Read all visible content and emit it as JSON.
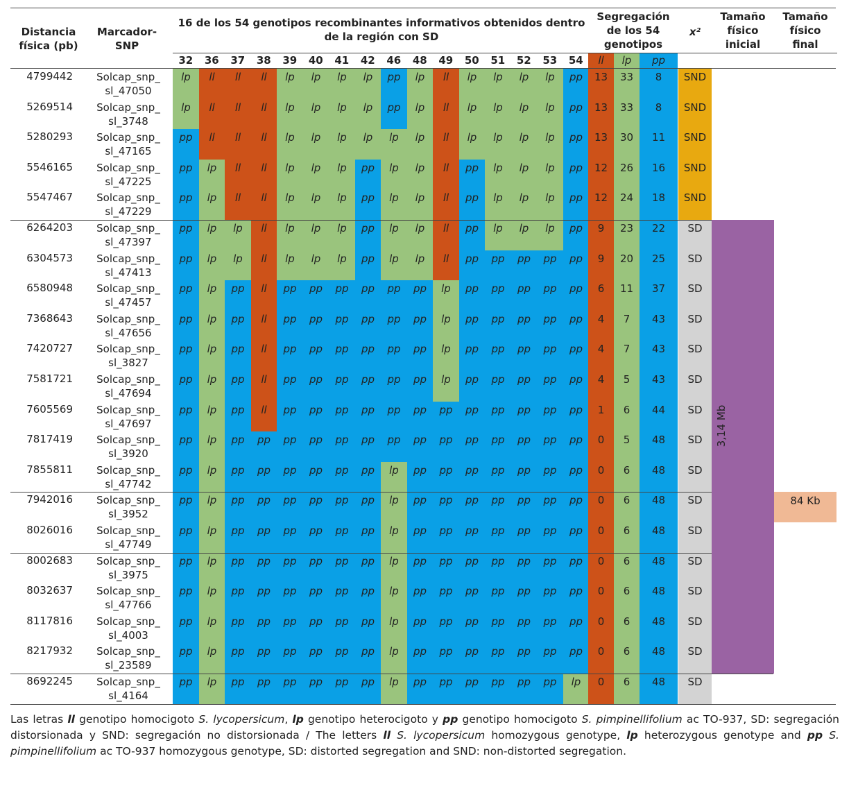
{
  "colors": {
    "ll": "#cd5219",
    "lp": "#9ac47d",
    "pp": "#0aa0e6",
    "snd": "#e8a910",
    "sd": "#d3d3d3",
    "purple": "#9a63a3",
    "salmon": "#f0b995"
  },
  "headers": {
    "distance": "Distancia física (pb)",
    "marker": "Marcador-SNP",
    "genotypes_title": "16 de los 54 genotipos recombinantes informativos obtenidos dentro de la región con SD",
    "segregation": "Segregación de los 54 genotipos",
    "chi": "x²",
    "size_initial": "Tamaño físico inicial",
    "size_final": "Tamaño físico final"
  },
  "genotype_ids": [
    "32",
    "36",
    "37",
    "38",
    "39",
    "40",
    "41",
    "42",
    "46",
    "48",
    "49",
    "50",
    "51",
    "52",
    "53",
    "54"
  ],
  "seg_labels": [
    "ll",
    "lp",
    "pp"
  ],
  "rows": [
    {
      "dist": "4799442",
      "marker": [
        "Solcap_snp_",
        "sl_47050"
      ],
      "g": [
        "lp",
        "ll",
        "ll",
        "ll",
        "lp",
        "lp",
        "lp",
        "lp",
        "pp",
        "lp",
        "ll",
        "lp",
        "lp",
        "lp",
        "lp",
        "pp"
      ],
      "seg": [
        "13",
        "33",
        "8"
      ],
      "chi": "SND"
    },
    {
      "dist": "5269514",
      "marker": [
        "Solcap_snp_",
        "sl_3748"
      ],
      "g": [
        "lp",
        "ll",
        "ll",
        "ll",
        "lp",
        "lp",
        "lp",
        "lp",
        "pp",
        "lp",
        "ll",
        "lp",
        "lp",
        "lp",
        "lp",
        "pp"
      ],
      "seg": [
        "13",
        "33",
        "8"
      ],
      "chi": "SND"
    },
    {
      "dist": "5280293",
      "marker": [
        "Solcap_snp_",
        "sl_47165"
      ],
      "g": [
        "pp",
        "ll",
        "ll",
        "ll",
        "lp",
        "lp",
        "lp",
        "lp",
        "lp",
        "lp",
        "ll",
        "lp",
        "lp",
        "lp",
        "lp",
        "pp"
      ],
      "seg": [
        "13",
        "30",
        "11"
      ],
      "chi": "SND"
    },
    {
      "dist": "5546165",
      "marker": [
        "Solcap_snp_",
        "sl_47225"
      ],
      "g": [
        "pp",
        "lp",
        "ll",
        "ll",
        "lp",
        "lp",
        "lp",
        "pp",
        "lp",
        "lp",
        "ll",
        "pp",
        "lp",
        "lp",
        "lp",
        "pp"
      ],
      "seg": [
        "12",
        "26",
        "16"
      ],
      "chi": "SND"
    },
    {
      "dist": "5547467",
      "marker": [
        "Solcap_snp_",
        "sl_47229"
      ],
      "g": [
        "pp",
        "lp",
        "ll",
        "ll",
        "lp",
        "lp",
        "lp",
        "pp",
        "lp",
        "lp",
        "ll",
        "pp",
        "lp",
        "lp",
        "lp",
        "pp"
      ],
      "seg": [
        "12",
        "24",
        "18"
      ],
      "chi": "SND"
    },
    {
      "dist": "6264203",
      "marker": [
        "Solcap_snp_",
        "sl_47397"
      ],
      "g": [
        "pp",
        "lp",
        "lp",
        "ll",
        "lp",
        "lp",
        "lp",
        "pp",
        "lp",
        "lp",
        "ll",
        "pp",
        "lp",
        "lp",
        "lp",
        "pp"
      ],
      "seg": [
        "9",
        "23",
        "22"
      ],
      "chi": "SD"
    },
    {
      "dist": "6304573",
      "marker": [
        "Solcap_snp_",
        "sl_47413"
      ],
      "g": [
        "pp",
        "lp",
        "lp",
        "ll",
        "lp",
        "lp",
        "lp",
        "pp",
        "lp",
        "lp",
        "ll",
        "pp",
        "pp",
        "pp",
        "pp",
        "pp"
      ],
      "seg": [
        "9",
        "20",
        "25"
      ],
      "chi": "SD"
    },
    {
      "dist": "6580948",
      "marker": [
        "Solcap_snp_",
        "sl_47457"
      ],
      "g": [
        "pp",
        "lp",
        "pp",
        "ll",
        "pp",
        "pp",
        "pp",
        "pp",
        "pp",
        "pp",
        "lp",
        "pp",
        "pp",
        "pp",
        "pp",
        "pp"
      ],
      "seg": [
        "6",
        "11",
        "37"
      ],
      "chi": "SD"
    },
    {
      "dist": "7368643",
      "marker": [
        "Solcap_snp_",
        "sl_47656"
      ],
      "g": [
        "pp",
        "lp",
        "pp",
        "ll",
        "pp",
        "pp",
        "pp",
        "pp",
        "pp",
        "pp",
        "lp",
        "pp",
        "pp",
        "pp",
        "pp",
        "pp"
      ],
      "seg": [
        "4",
        "7",
        "43"
      ],
      "chi": "SD"
    },
    {
      "dist": "7420727",
      "marker": [
        "Solcap_snp_",
        "sl_3827"
      ],
      "g": [
        "pp",
        "lp",
        "pp",
        "ll",
        "pp",
        "pp",
        "pp",
        "pp",
        "pp",
        "pp",
        "lp",
        "pp",
        "pp",
        "pp",
        "pp",
        "pp"
      ],
      "seg": [
        "4",
        "7",
        "43"
      ],
      "chi": "SD"
    },
    {
      "dist": "7581721",
      "marker": [
        "Solcap_snp_",
        "sl_47694"
      ],
      "g": [
        "pp",
        "lp",
        "pp",
        "ll",
        "pp",
        "pp",
        "pp",
        "pp",
        "pp",
        "pp",
        "lp",
        "pp",
        "pp",
        "pp",
        "pp",
        "pp"
      ],
      "seg": [
        "4",
        "5",
        "43"
      ],
      "chi": "SD"
    },
    {
      "dist": "7605569",
      "marker": [
        "Solcap_snp_",
        "sl_47697"
      ],
      "g": [
        "pp",
        "lp",
        "pp",
        "ll",
        "pp",
        "pp",
        "pp",
        "pp",
        "pp",
        "pp",
        "pp",
        "pp",
        "pp",
        "pp",
        "pp",
        "pp"
      ],
      "seg": [
        "1",
        "6",
        "44"
      ],
      "chi": "SD"
    },
    {
      "dist": "7817419",
      "marker": [
        "Solcap_snp_",
        "sl_3920"
      ],
      "g": [
        "pp",
        "lp",
        "pp",
        "pp",
        "pp",
        "pp",
        "pp",
        "pp",
        "pp",
        "pp",
        "pp",
        "pp",
        "pp",
        "pp",
        "pp",
        "pp"
      ],
      "seg": [
        "0",
        "5",
        "48"
      ],
      "chi": "SD"
    },
    {
      "dist": "7855811",
      "marker": [
        "Solcap_snp_",
        "sl_47742"
      ],
      "g": [
        "pp",
        "lp",
        "pp",
        "pp",
        "pp",
        "pp",
        "pp",
        "pp",
        "lp",
        "pp",
        "pp",
        "pp",
        "pp",
        "pp",
        "pp",
        "pp"
      ],
      "seg": [
        "0",
        "6",
        "48"
      ],
      "chi": "SD"
    },
    {
      "dist": "7942016",
      "marker": [
        "Solcap_snp_",
        "sl_3952"
      ],
      "g": [
        "pp",
        "lp",
        "pp",
        "pp",
        "pp",
        "pp",
        "pp",
        "pp",
        "lp",
        "pp",
        "pp",
        "pp",
        "pp",
        "pp",
        "pp",
        "pp"
      ],
      "seg": [
        "0",
        "6",
        "48"
      ],
      "chi": "SD"
    },
    {
      "dist": "8026016",
      "marker": [
        "Solcap_snp_",
        "sl_47749"
      ],
      "g": [
        "pp",
        "lp",
        "pp",
        "pp",
        "pp",
        "pp",
        "pp",
        "pp",
        "lp",
        "pp",
        "pp",
        "pp",
        "pp",
        "pp",
        "pp",
        "pp"
      ],
      "seg": [
        "0",
        "6",
        "48"
      ],
      "chi": "SD"
    },
    {
      "dist": "8002683",
      "marker": [
        "Solcap_snp_",
        "sl_3975"
      ],
      "g": [
        "pp",
        "lp",
        "pp",
        "pp",
        "pp",
        "pp",
        "pp",
        "pp",
        "lp",
        "pp",
        "pp",
        "pp",
        "pp",
        "pp",
        "pp",
        "pp"
      ],
      "seg": [
        "0",
        "6",
        "48"
      ],
      "chi": "SD"
    },
    {
      "dist": "8032637",
      "marker": [
        "Solcap_snp_",
        "sl_47766"
      ],
      "g": [
        "pp",
        "lp",
        "pp",
        "pp",
        "pp",
        "pp",
        "pp",
        "pp",
        "lp",
        "pp",
        "pp",
        "pp",
        "pp",
        "pp",
        "pp",
        "pp"
      ],
      "seg": [
        "0",
        "6",
        "48"
      ],
      "chi": "SD"
    },
    {
      "dist": "8117816",
      "marker": [
        "Solcap_snp_",
        "sl_4003"
      ],
      "g": [
        "pp",
        "lp",
        "pp",
        "pp",
        "pp",
        "pp",
        "pp",
        "pp",
        "lp",
        "pp",
        "pp",
        "pp",
        "pp",
        "pp",
        "pp",
        "pp"
      ],
      "seg": [
        "0",
        "6",
        "48"
      ],
      "chi": "SD"
    },
    {
      "dist": "8217932",
      "marker": [
        "Solcap_snp_",
        "sl_23589"
      ],
      "g": [
        "pp",
        "lp",
        "pp",
        "pp",
        "pp",
        "pp",
        "pp",
        "pp",
        "lp",
        "pp",
        "pp",
        "pp",
        "pp",
        "pp",
        "pp",
        "pp"
      ],
      "seg": [
        "0",
        "6",
        "48"
      ],
      "chi": "SD"
    },
    {
      "dist": "8692245",
      "marker": [
        "Solcap_snp_",
        "sl_4164"
      ],
      "g": [
        "pp",
        "lp",
        "pp",
        "pp",
        "pp",
        "pp",
        "pp",
        "pp",
        "lp",
        "pp",
        "pp",
        "pp",
        "pp",
        "pp",
        "pp",
        "lp"
      ],
      "seg": [
        "0",
        "6",
        "48"
      ],
      "chi": "SD"
    }
  ],
  "size_initial_value": "3,14 Mb",
  "size_final_value": "84 Kb",
  "caption": [
    {
      "t": "Las letras "
    },
    {
      "t": "ll",
      "s": "bi"
    },
    {
      "t": " genotipo homocigoto "
    },
    {
      "t": "S. lycopersicum",
      "s": "i"
    },
    {
      "t": ", "
    },
    {
      "t": "lp",
      "s": "bi"
    },
    {
      "t": " genotipo heterocigoto y "
    },
    {
      "t": "pp",
      "s": "bi"
    },
    {
      "t": " genotipo homocigoto "
    },
    {
      "t": "S. pimpinellifolium",
      "s": "i"
    },
    {
      "t": " ac TO-937, SD: segregación distorsionada y SND: segregación no distorsionada / The letters "
    },
    {
      "t": "ll",
      "s": "bi"
    },
    {
      "t": " "
    },
    {
      "t": "S. lycopersicum",
      "s": "i"
    },
    {
      "t": " homozygous genotype, "
    },
    {
      "t": "lp",
      "s": "bi"
    },
    {
      "t": " heterozygous genotype and "
    },
    {
      "t": "pp",
      "s": "bi"
    },
    {
      "t": " "
    },
    {
      "t": "S. pimpinellifolium",
      "s": "i"
    },
    {
      "t": " ac TO-937 homozygous genotype, SD: distorted segregation and SND: non-distorted segregation."
    }
  ]
}
